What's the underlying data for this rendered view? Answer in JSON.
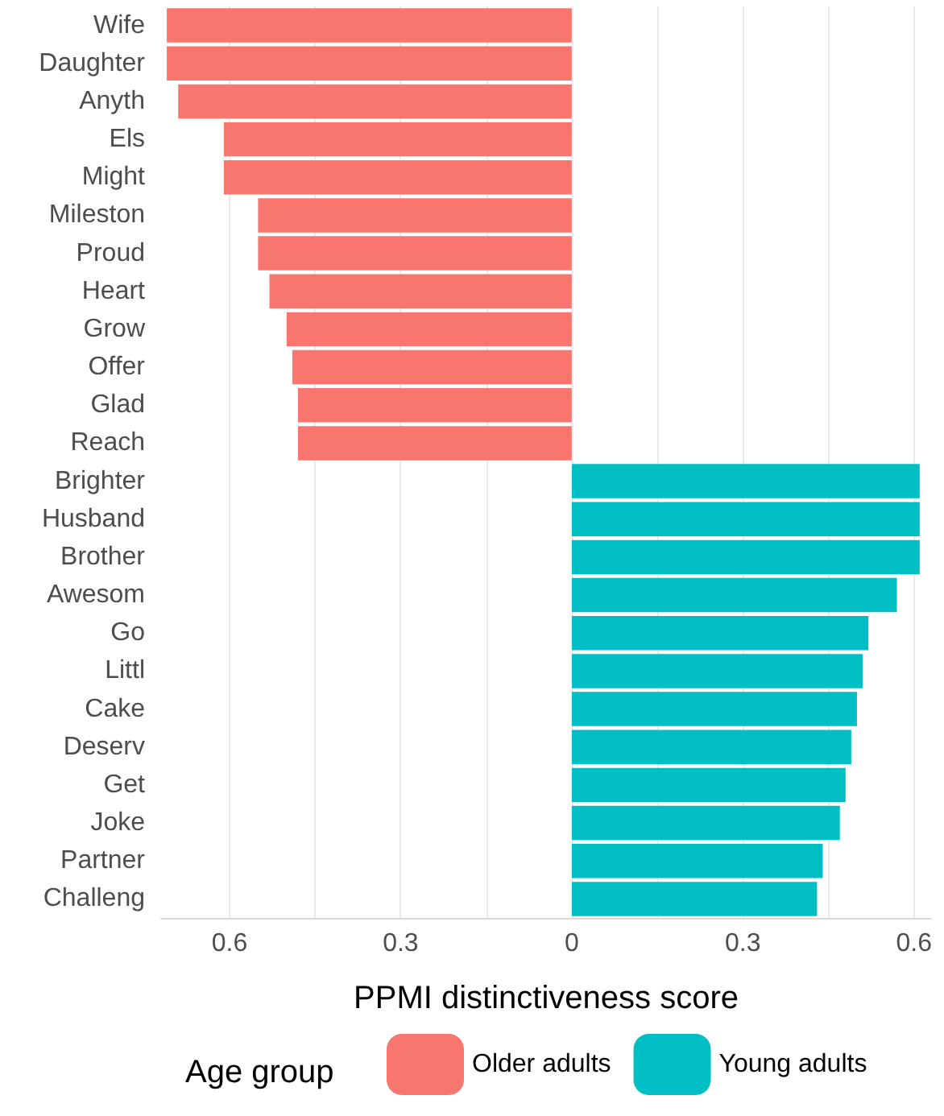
{
  "chart_data": {
    "type": "bar",
    "orientation": "horizontal",
    "stacked": true,
    "xlabel": "PPMI distinctiveness score",
    "legend_title": "Age group",
    "legend": "bottom",
    "grid": "x",
    "categories": [
      "Wife",
      "Daughter",
      "Anyth",
      "Els",
      "Might",
      "Mileston",
      "Proud",
      "Heart",
      "Grow",
      "Offer",
      "Glad",
      "Reach",
      "Brighter",
      "Husband",
      "Brother",
      "Awesom",
      "Go",
      "Littl",
      "Cake",
      "Deserv",
      "Get",
      "Joke",
      "Partner",
      "Challeng"
    ],
    "series": [
      {
        "name": "Older adults",
        "color": "#f8766d",
        "values": [
          -0.71,
          -0.71,
          -0.69,
          -0.61,
          -0.61,
          -0.55,
          -0.55,
          -0.53,
          -0.5,
          -0.49,
          -0.48,
          -0.48,
          null,
          null,
          null,
          null,
          null,
          null,
          null,
          null,
          null,
          null,
          null,
          null
        ]
      },
      {
        "name": "Young adults",
        "color": "#00bfc4",
        "values": [
          null,
          null,
          null,
          null,
          null,
          null,
          null,
          null,
          null,
          null,
          null,
          null,
          0.61,
          0.61,
          0.61,
          0.57,
          0.52,
          0.51,
          0.5,
          0.49,
          0.48,
          0.47,
          0.44,
          0.43
        ]
      }
    ],
    "xlim": [
      -0.72,
      0.63
    ],
    "xticks": [
      {
        "value": -0.6,
        "label": "0.6"
      },
      {
        "value": -0.45,
        "label": null
      },
      {
        "value": -0.3,
        "label": "0.3"
      },
      {
        "value": -0.15,
        "label": null
      },
      0,
      {
        "value": 0.15,
        "label": null
      },
      {
        "value": 0.3,
        "label": "0.3"
      },
      {
        "value": 0.45,
        "label": null
      },
      {
        "value": 0.6,
        "label": "0.6"
      }
    ]
  }
}
